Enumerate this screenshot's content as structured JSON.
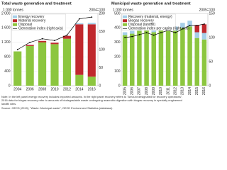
{
  "chart_data": [
    {
      "type": "bar",
      "stacked": true,
      "title": "Total waste generation and treatment",
      "y_label": "1 000 tonnes",
      "y2_label": "2004=100",
      "categories": [
        "2004",
        "2006",
        "2008",
        "2010",
        "2012",
        "2014",
        "2016"
      ],
      "series": [
        {
          "name": "Disposal",
          "color": "#8cc63f",
          "values": [
            950,
            1100,
            1200,
            1150,
            1300,
            300,
            250
          ]
        },
        {
          "name": "Material recovery",
          "color": "#c0282d",
          "values": [
            0,
            30,
            40,
            40,
            80,
            1400,
            1450
          ]
        },
        {
          "name": "Energy recovery",
          "color": "#a6cfe8",
          "values": [
            0,
            0,
            0,
            0,
            0,
            30,
            40
          ]
        },
        {
          "name": "Generation index (right axis)",
          "color": "#000000",
          "type": "line",
          "axis": "y2",
          "values": [
            100,
            120,
            130,
            125,
            140,
            185,
            190
          ]
        }
      ],
      "legend_order": [
        2,
        1,
        0,
        3
      ],
      "ylim": [
        0,
        2000
      ],
      "yticks": [
        0,
        400,
        800,
        {
          "value": 1200,
          "label": "1 200"
        },
        {
          "value": 1600,
          "label": "1 600"
        },
        {
          "value": 2000,
          "label": "2 000"
        }
      ],
      "y2lim": [
        0,
        200
      ],
      "y2ticks": [
        0,
        50,
        100,
        150,
        200
      ],
      "grid": true,
      "rotate_x_labels": false
    },
    {
      "type": "bar",
      "stacked": true,
      "title": "Municipal waste generation and treatment",
      "y_label": "1 000 tonnes",
      "y2_label": "2005=100",
      "categories": [
        "2005",
        "2006",
        "2007",
        "2008",
        "2009",
        "2010",
        "2011",
        "2012",
        "2013",
        "2014",
        "2015",
        "2016"
      ],
      "series": [
        {
          "name": "Disposal (landfill)",
          "color": "#8cc63f",
          "values": [
            350,
            360,
            380,
            390,
            370,
            390,
            400,
            380,
            400,
            410,
            330,
            320
          ]
        },
        {
          "name": "Recovery (material, energy)",
          "color": "#a6cfe8",
          "values": [
            20,
            20,
            20,
            25,
            25,
            25,
            30,
            30,
            35,
            40,
            40,
            45
          ]
        },
        {
          "name": "Biogas recovery",
          "color": "#c0282d",
          "values": [
            0,
            0,
            0,
            0,
            0,
            0,
            0,
            0,
            0,
            0,
            50,
            60
          ]
        },
        {
          "name": "Generation index per capita (right axis)",
          "color": "#000000",
          "type": "line",
          "axis": "y2",
          "values": [
            100,
            102,
            106,
            110,
            105,
            110,
            115,
            110,
            118,
            125,
            125,
            128
          ]
        }
      ],
      "legend_order": [
        1,
        2,
        0,
        3
      ],
      "ylim": [
        0,
        500
      ],
      "yticks": [
        0,
        100,
        200,
        300,
        400,
        500
      ],
      "y2lim": [
        0,
        150
      ],
      "y2ticks": [
        0,
        50,
        100,
        150
      ],
      "grid": true,
      "rotate_x_labels": true
    }
  ],
  "notes": [
    "Note: In the left panel energy recovery includes imported amounts. In the right panel recovery refers to \"Amount designated for recovery operations\",",
    "2016 data for biogas recovery refer to amounts of biodegradable waste undergoing anaerobic digestion with biogas recovery in specially engineered",
    "landfill sites.",
    "Source: OECD (2019), \"Waste: Municipal waste\", OECD Environment Statistics (database)."
  ]
}
